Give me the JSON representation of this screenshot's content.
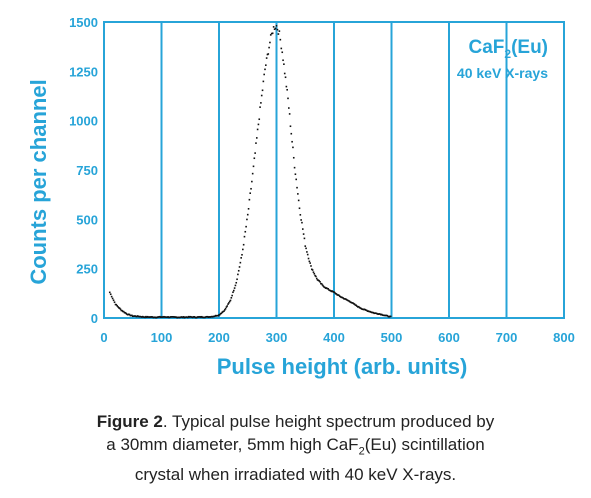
{
  "chart_data": {
    "type": "scatter",
    "xlabel": "Pulse height (arb. units)",
    "ylabel": "Counts per channel",
    "xlim": [
      0,
      800
    ],
    "ylim": [
      0,
      1500
    ],
    "x_ticks": [
      "0",
      "100",
      "200",
      "300",
      "400",
      "500",
      "600",
      "700",
      "800"
    ],
    "y_ticks": [
      "0",
      "250",
      "500",
      "750",
      "1000",
      "1250",
      "1500"
    ],
    "grid": "vertical",
    "annotation": {
      "line1_main": "CaF",
      "line1_sub": "2",
      "line1_tail": "(Eu)",
      "line2": "40 keV X-rays",
      "placement": "top-right"
    },
    "series": [
      {
        "points": [
          [
            10,
            130
          ],
          [
            15,
            100
          ],
          [
            20,
            70
          ],
          [
            30,
            40
          ],
          [
            40,
            20
          ],
          [
            50,
            10
          ],
          [
            60,
            8
          ],
          [
            70,
            5
          ],
          [
            80,
            5
          ],
          [
            90,
            4
          ],
          [
            100,
            5
          ],
          [
            110,
            5
          ],
          [
            120,
            4
          ],
          [
            130,
            4
          ],
          [
            140,
            4
          ],
          [
            150,
            5
          ],
          [
            160,
            4
          ],
          [
            170,
            5
          ],
          [
            180,
            5
          ],
          [
            190,
            8
          ],
          [
            200,
            15
          ],
          [
            210,
            40
          ],
          [
            220,
            90
          ],
          [
            230,
            180
          ],
          [
            240,
            320
          ],
          [
            250,
            520
          ],
          [
            260,
            760
          ],
          [
            270,
            1020
          ],
          [
            280,
            1260
          ],
          [
            290,
            1420
          ],
          [
            295,
            1470
          ],
          [
            300,
            1480
          ],
          [
            305,
            1440
          ],
          [
            310,
            1350
          ],
          [
            320,
            1110
          ],
          [
            330,
            810
          ],
          [
            340,
            560
          ],
          [
            350,
            370
          ],
          [
            360,
            260
          ],
          [
            370,
            200
          ],
          [
            380,
            165
          ],
          [
            390,
            145
          ],
          [
            400,
            130
          ],
          [
            410,
            110
          ],
          [
            420,
            95
          ],
          [
            430,
            80
          ],
          [
            440,
            60
          ],
          [
            450,
            45
          ],
          [
            460,
            35
          ],
          [
            470,
            25
          ],
          [
            480,
            20
          ],
          [
            490,
            12
          ],
          [
            500,
            5
          ]
        ]
      }
    ]
  },
  "caption": {
    "label": "Figure 2",
    "text_line1_rest": ". Typical pulse height spectrum produced by",
    "text_line2_a": "a 30mm diameter, 5mm high CaF",
    "text_line2_sub": "2",
    "text_line2_b": "(Eu) scintillation",
    "text_line3": "crystal when irradiated with 40 keV X-rays."
  },
  "colors": {
    "accent": "#27a4d8",
    "data": "#111111",
    "caption_text": "#222222"
  }
}
